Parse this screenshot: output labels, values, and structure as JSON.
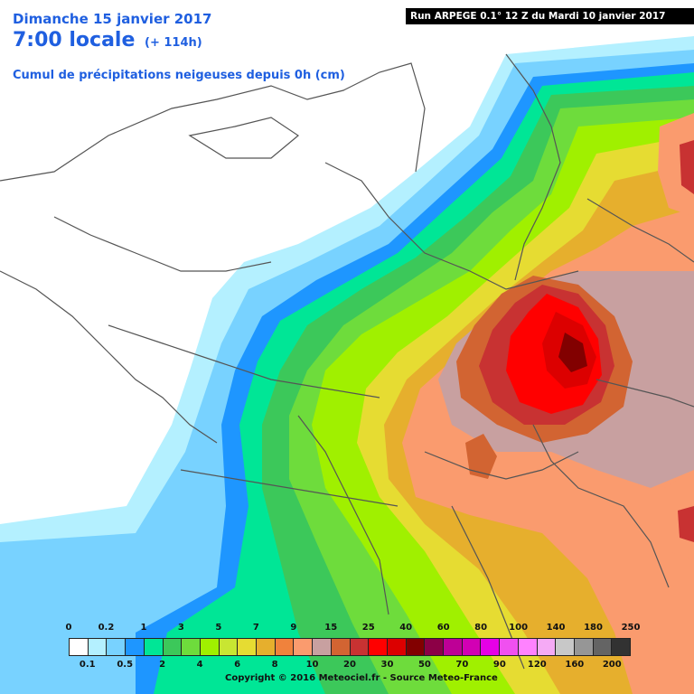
{
  "header": {
    "date": "Dimanche 15 janvier 2017",
    "time": "7:00 locale",
    "lead": "(+ 114h)",
    "variable": "Cumul de précipitations neigeuses depuis 0h (cm)",
    "run": "Run ARPEGE 0.1° 12 Z du Mardi 10 janvier 2017"
  },
  "legend": {
    "swatch_colors": [
      "#ffffff",
      "#b4f0ff",
      "#78d2ff",
      "#1e96ff",
      "#00e696",
      "#3cc85a",
      "#6edc3c",
      "#a0f000",
      "#c8e632",
      "#e6dc32",
      "#e6af2d",
      "#f0823c",
      "#fa9b6e",
      "#c8a0a0",
      "#d26432",
      "#c83232",
      "#ff0000",
      "#dc0000",
      "#820000",
      "#8c0046",
      "#be0096",
      "#d200b4",
      "#e600e6",
      "#f050f0",
      "#ff82ff",
      "#f5aaf5",
      "#c8c8c8",
      "#969696",
      "#646464",
      "#323232"
    ],
    "top_labels": [
      "0",
      "0.2",
      "1",
      "3",
      "5",
      "7",
      "9",
      "15",
      "25",
      "40",
      "60",
      "80",
      "100",
      "140",
      "180",
      "250"
    ],
    "bottom_labels": [
      "0.1",
      "0.5",
      "2",
      "4",
      "6",
      "8",
      "10",
      "20",
      "30",
      "50",
      "70",
      "90",
      "120",
      "160",
      "200"
    ]
  },
  "copyright": "Copyright © 2016 Meteociel.fr - Source Meteo-France"
}
